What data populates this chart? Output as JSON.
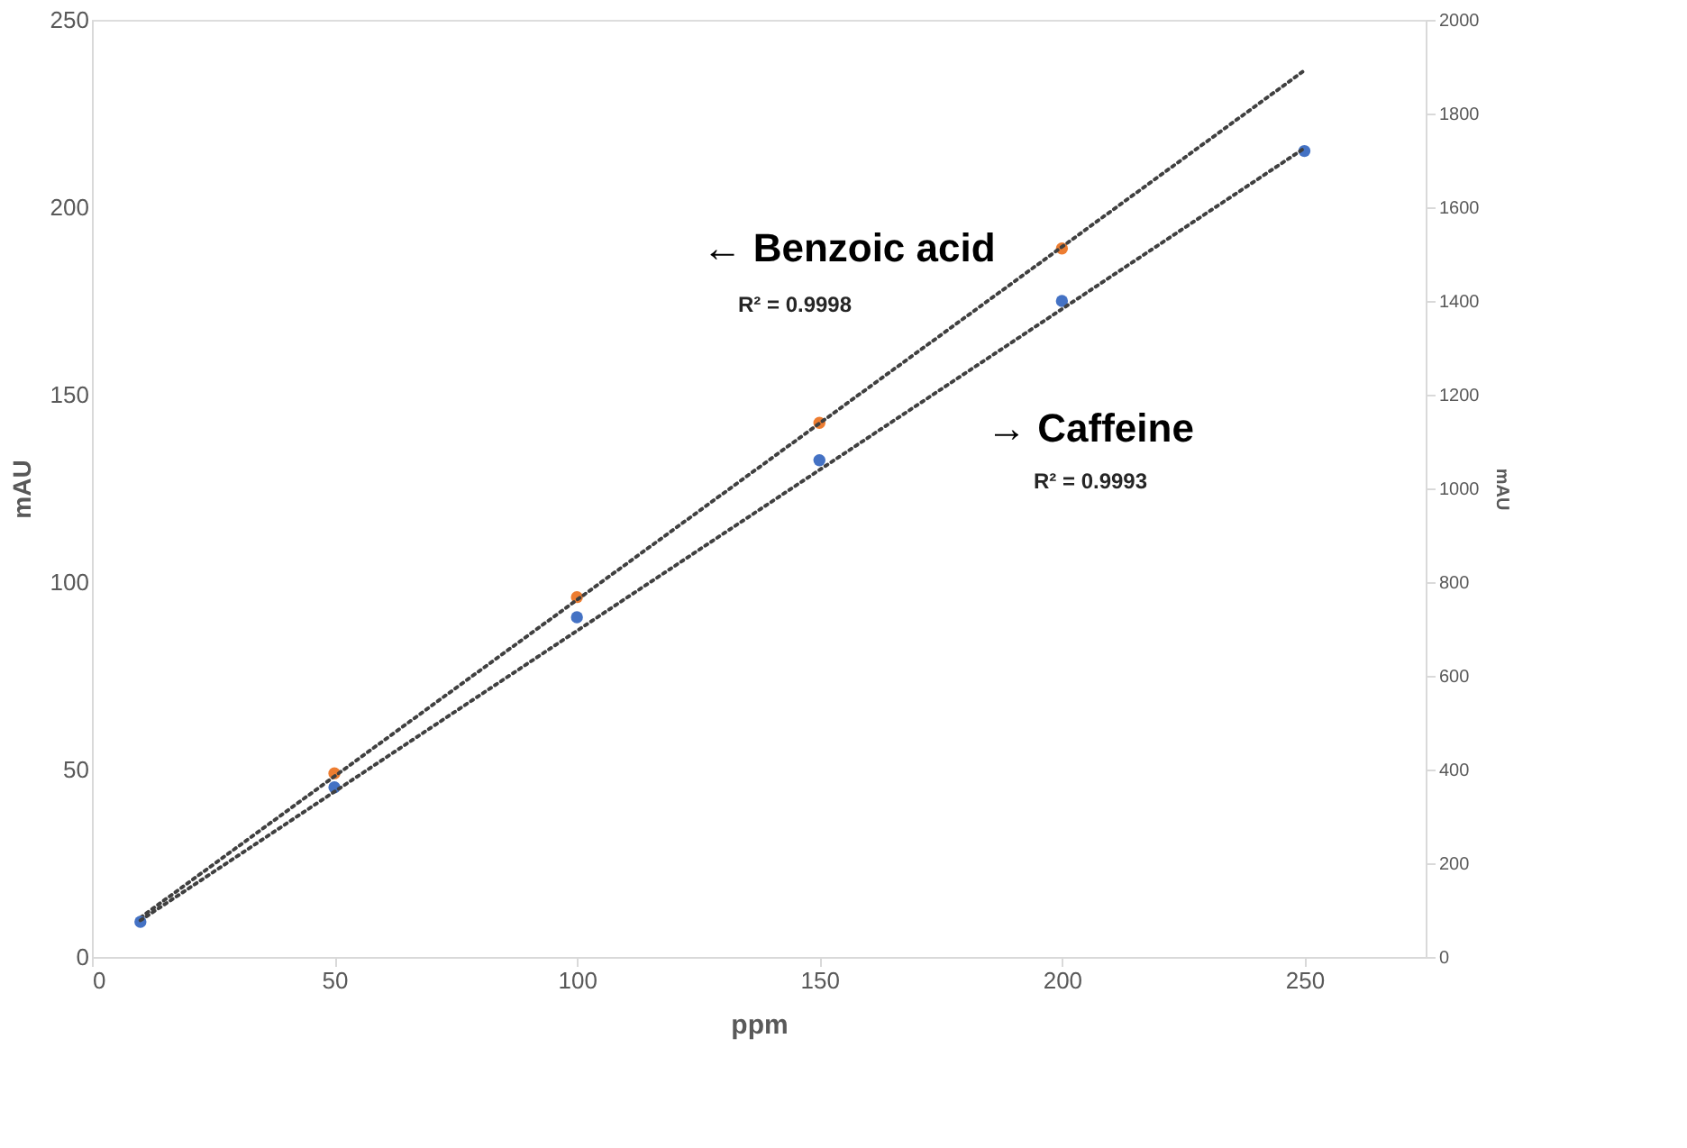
{
  "chart_data": {
    "type": "scatter",
    "xlabel": "ppm",
    "ylabel": "mAU",
    "y2label": "mAU",
    "xlim": [
      0,
      275
    ],
    "xticks": [
      0,
      50,
      100,
      150,
      200,
      250
    ],
    "ylim": [
      0,
      250
    ],
    "yticks": [
      0,
      50,
      100,
      150,
      200,
      250
    ],
    "y2lim": [
      0,
      2000
    ],
    "y2ticks": [
      0,
      200,
      400,
      600,
      800,
      1000,
      1200,
      1400,
      1600,
      1800,
      2000
    ],
    "grid": false,
    "series": [
      {
        "marker": "circle",
        "color": "#ed7d31",
        "x": [
          50,
          100,
          150,
          200
        ],
        "values": [
          49,
          96,
          142.5,
          189
        ]
      },
      {
        "type": "line",
        "line_style": "dotted",
        "color": "#404040",
        "x": [
          10,
          250
        ],
        "values": [
          10.5,
          236.5
        ]
      },
      {
        "marker": "circle",
        "axis": "y2",
        "color": "#4472c4",
        "x": [
          10,
          50,
          100,
          150,
          200,
          250
        ],
        "values": [
          75,
          362,
          725,
          1060,
          1400,
          1720
        ]
      },
      {
        "type": "line",
        "axis": "y2",
        "line_style": "dotted",
        "color": "#404040",
        "x": [
          10,
          250
        ],
        "values": [
          78,
          1726
        ]
      }
    ],
    "annotations": [
      "← Benzoic acid",
      "R² = 0.9998",
      "→ Caffeine",
      "R² = 0.9993"
    ]
  }
}
